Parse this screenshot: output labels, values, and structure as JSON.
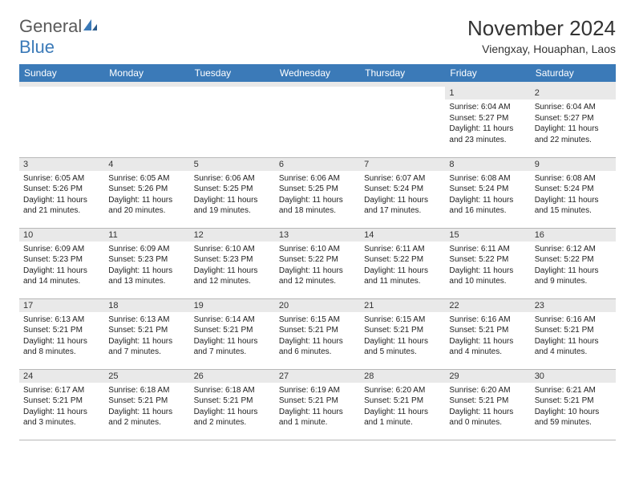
{
  "logo": {
    "text1": "General",
    "text2": "Blue"
  },
  "title": "November 2024",
  "location": "Viengxay, Houaphan, Laos",
  "colors": {
    "header_bg": "#3b7ab8",
    "header_text": "#ffffff",
    "daynum_bg": "#e9e9e9",
    "border": "#b8b8b8",
    "text": "#222222",
    "title_text": "#333333",
    "logo_gray": "#5a5a5a",
    "logo_blue": "#3b7ab8"
  },
  "weekdays": [
    "Sunday",
    "Monday",
    "Tuesday",
    "Wednesday",
    "Thursday",
    "Friday",
    "Saturday"
  ],
  "leading_blanks": 5,
  "days": [
    {
      "n": 1,
      "sr": "6:04 AM",
      "ss": "5:27 PM",
      "dl": "11 hours and 23 minutes."
    },
    {
      "n": 2,
      "sr": "6:04 AM",
      "ss": "5:27 PM",
      "dl": "11 hours and 22 minutes."
    },
    {
      "n": 3,
      "sr": "6:05 AM",
      "ss": "5:26 PM",
      "dl": "11 hours and 21 minutes."
    },
    {
      "n": 4,
      "sr": "6:05 AM",
      "ss": "5:26 PM",
      "dl": "11 hours and 20 minutes."
    },
    {
      "n": 5,
      "sr": "6:06 AM",
      "ss": "5:25 PM",
      "dl": "11 hours and 19 minutes."
    },
    {
      "n": 6,
      "sr": "6:06 AM",
      "ss": "5:25 PM",
      "dl": "11 hours and 18 minutes."
    },
    {
      "n": 7,
      "sr": "6:07 AM",
      "ss": "5:24 PM",
      "dl": "11 hours and 17 minutes."
    },
    {
      "n": 8,
      "sr": "6:08 AM",
      "ss": "5:24 PM",
      "dl": "11 hours and 16 minutes."
    },
    {
      "n": 9,
      "sr": "6:08 AM",
      "ss": "5:24 PM",
      "dl": "11 hours and 15 minutes."
    },
    {
      "n": 10,
      "sr": "6:09 AM",
      "ss": "5:23 PM",
      "dl": "11 hours and 14 minutes."
    },
    {
      "n": 11,
      "sr": "6:09 AM",
      "ss": "5:23 PM",
      "dl": "11 hours and 13 minutes."
    },
    {
      "n": 12,
      "sr": "6:10 AM",
      "ss": "5:23 PM",
      "dl": "11 hours and 12 minutes."
    },
    {
      "n": 13,
      "sr": "6:10 AM",
      "ss": "5:22 PM",
      "dl": "11 hours and 12 minutes."
    },
    {
      "n": 14,
      "sr": "6:11 AM",
      "ss": "5:22 PM",
      "dl": "11 hours and 11 minutes."
    },
    {
      "n": 15,
      "sr": "6:11 AM",
      "ss": "5:22 PM",
      "dl": "11 hours and 10 minutes."
    },
    {
      "n": 16,
      "sr": "6:12 AM",
      "ss": "5:22 PM",
      "dl": "11 hours and 9 minutes."
    },
    {
      "n": 17,
      "sr": "6:13 AM",
      "ss": "5:21 PM",
      "dl": "11 hours and 8 minutes."
    },
    {
      "n": 18,
      "sr": "6:13 AM",
      "ss": "5:21 PM",
      "dl": "11 hours and 7 minutes."
    },
    {
      "n": 19,
      "sr": "6:14 AM",
      "ss": "5:21 PM",
      "dl": "11 hours and 7 minutes."
    },
    {
      "n": 20,
      "sr": "6:15 AM",
      "ss": "5:21 PM",
      "dl": "11 hours and 6 minutes."
    },
    {
      "n": 21,
      "sr": "6:15 AM",
      "ss": "5:21 PM",
      "dl": "11 hours and 5 minutes."
    },
    {
      "n": 22,
      "sr": "6:16 AM",
      "ss": "5:21 PM",
      "dl": "11 hours and 4 minutes."
    },
    {
      "n": 23,
      "sr": "6:16 AM",
      "ss": "5:21 PM",
      "dl": "11 hours and 4 minutes."
    },
    {
      "n": 24,
      "sr": "6:17 AM",
      "ss": "5:21 PM",
      "dl": "11 hours and 3 minutes."
    },
    {
      "n": 25,
      "sr": "6:18 AM",
      "ss": "5:21 PM",
      "dl": "11 hours and 2 minutes."
    },
    {
      "n": 26,
      "sr": "6:18 AM",
      "ss": "5:21 PM",
      "dl": "11 hours and 2 minutes."
    },
    {
      "n": 27,
      "sr": "6:19 AM",
      "ss": "5:21 PM",
      "dl": "11 hours and 1 minute."
    },
    {
      "n": 28,
      "sr": "6:20 AM",
      "ss": "5:21 PM",
      "dl": "11 hours and 1 minute."
    },
    {
      "n": 29,
      "sr": "6:20 AM",
      "ss": "5:21 PM",
      "dl": "11 hours and 0 minutes."
    },
    {
      "n": 30,
      "sr": "6:21 AM",
      "ss": "5:21 PM",
      "dl": "10 hours and 59 minutes."
    }
  ],
  "labels": {
    "sunrise": "Sunrise:",
    "sunset": "Sunset:",
    "daylight": "Daylight:"
  }
}
